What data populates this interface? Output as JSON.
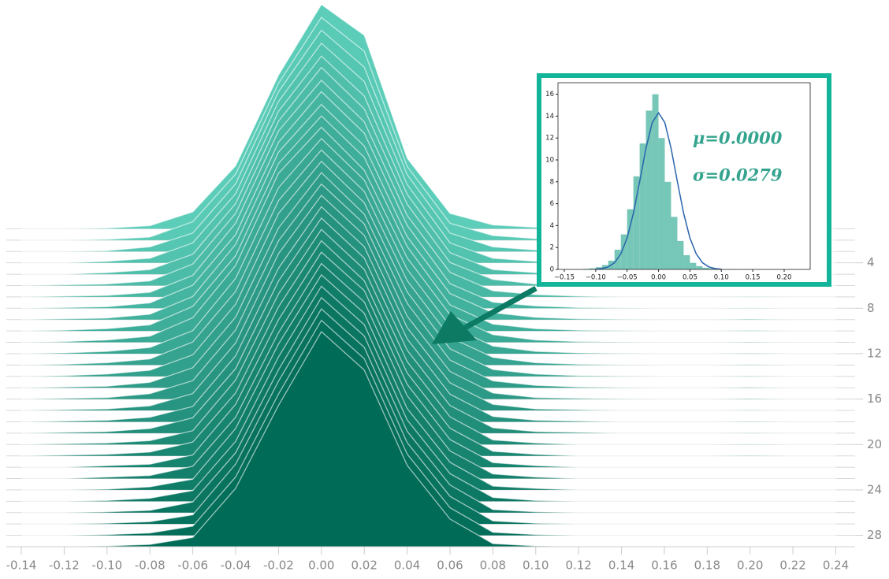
{
  "chart_data": [
    {
      "type": "ridgeline",
      "x": [
        -0.14,
        -0.12,
        -0.1,
        -0.08,
        -0.06,
        -0.04,
        -0.02,
        0.0,
        0.02,
        0.04,
        0.06,
        0.08,
        0.1,
        0.12,
        0.14,
        0.16,
        0.18,
        0.2,
        0.22,
        0.24
      ],
      "series": [
        {
          "values": [
            0,
            0,
            0.05,
            0.2,
            1.1,
            4.1,
            10.0,
            14.6,
            12.6,
            4.6,
            1.0,
            0.25,
            0.1,
            0.05,
            0,
            0,
            0,
            0,
            0,
            0
          ]
        },
        {
          "values": [
            0,
            0,
            0.05,
            0.2,
            1.2,
            4.3,
            10.2,
            14.5,
            12.3,
            4.8,
            1.1,
            0.3,
            0.1,
            0.05,
            0,
            0,
            0,
            0,
            0,
            0
          ]
        },
        {
          "values": [
            0,
            0,
            0.05,
            0.3,
            1.2,
            4.4,
            10.4,
            14.4,
            12.0,
            5.0,
            1.2,
            0.3,
            0.1,
            0.05,
            0,
            0,
            0,
            0,
            0,
            0
          ]
        },
        {
          "values": [
            0,
            0,
            0.1,
            0.3,
            1.3,
            4.5,
            10.5,
            14.3,
            11.8,
            5.1,
            1.3,
            0.3,
            0.1,
            0.05,
            0,
            0,
            0,
            0,
            0,
            0
          ]
        },
        {
          "values": [
            0,
            0,
            0.1,
            0.3,
            1.3,
            4.6,
            10.6,
            14.2,
            11.6,
            5.2,
            1.4,
            0.3,
            0.1,
            0.05,
            0,
            0,
            0,
            0,
            0,
            0
          ]
        },
        {
          "values": [
            0,
            0.05,
            0.1,
            0.3,
            1.4,
            4.7,
            10.7,
            14.2,
            11.5,
            5.3,
            1.5,
            0.4,
            0.1,
            0.05,
            0,
            0,
            0,
            0.02,
            0,
            0
          ]
        },
        {
          "values": [
            0,
            0.05,
            0.1,
            0.3,
            1.4,
            4.8,
            10.8,
            14.1,
            11.4,
            5.3,
            1.6,
            0.4,
            0.15,
            0.05,
            0,
            0,
            0,
            0.02,
            0,
            0
          ]
        },
        {
          "values": [
            0,
            0.05,
            0.1,
            0.35,
            1.5,
            4.8,
            10.8,
            14.1,
            11.4,
            5.4,
            1.6,
            0.4,
            0.15,
            0.05,
            0.02,
            0,
            0,
            0.02,
            0,
            0
          ]
        },
        {
          "values": [
            0,
            0.05,
            0.1,
            0.35,
            1.5,
            4.9,
            10.9,
            14.0,
            11.3,
            5.4,
            1.7,
            0.45,
            0.15,
            0.05,
            0.02,
            0,
            0,
            0.03,
            0,
            0
          ]
        },
        {
          "values": [
            0,
            0.05,
            0.15,
            0.4,
            1.6,
            4.9,
            10.9,
            14.0,
            11.3,
            5.5,
            1.7,
            0.45,
            0.15,
            0.05,
            0.02,
            0,
            0,
            0.03,
            0,
            0
          ]
        },
        {
          "values": [
            0,
            0.05,
            0.15,
            0.4,
            1.6,
            5.0,
            11.0,
            14.0,
            11.2,
            5.5,
            1.8,
            0.5,
            0.15,
            0.05,
            0.02,
            0,
            0,
            0.03,
            0,
            0
          ]
        },
        {
          "values": [
            0,
            0.05,
            0.15,
            0.4,
            1.5,
            4.9,
            10.8,
            14.0,
            11.3,
            5.5,
            1.8,
            0.5,
            0.15,
            0.05,
            0.02,
            0,
            0,
            0.03,
            0,
            0
          ]
        },
        {
          "values": [
            0,
            0.05,
            0.15,
            0.4,
            1.5,
            4.8,
            10.7,
            14.0,
            11.3,
            5.5,
            1.8,
            0.5,
            0.15,
            0.05,
            0.02,
            0,
            0,
            0.03,
            0,
            0
          ]
        },
        {
          "values": [
            0,
            0.05,
            0.15,
            0.4,
            1.4,
            4.7,
            10.6,
            14.0,
            11.3,
            5.5,
            1.8,
            0.45,
            0.15,
            0.05,
            0.02,
            0,
            0,
            0.03,
            0,
            0
          ]
        },
        {
          "values": [
            0,
            0.05,
            0.1,
            0.35,
            1.3,
            4.6,
            10.4,
            14.0,
            11.3,
            5.5,
            1.8,
            0.45,
            0.15,
            0.05,
            0.02,
            0,
            0,
            0.03,
            0,
            0
          ]
        },
        {
          "values": [
            0,
            0.05,
            0.1,
            0.35,
            1.2,
            4.5,
            10.3,
            14.0,
            11.4,
            5.4,
            1.8,
            0.4,
            0.1,
            0.05,
            0.02,
            0,
            0,
            0.03,
            0,
            0
          ]
        },
        {
          "values": [
            0,
            0.05,
            0.1,
            0.3,
            1.1,
            4.4,
            10.2,
            14.0,
            11.4,
            5.4,
            1.8,
            0.4,
            0.1,
            0.05,
            0,
            0,
            0,
            0.02,
            0,
            0
          ]
        },
        {
          "values": [
            0,
            0.05,
            0.1,
            0.3,
            1.0,
            4.3,
            10.0,
            14.0,
            11.4,
            5.4,
            1.8,
            0.35,
            0.1,
            0.05,
            0,
            0,
            0,
            0.02,
            0,
            0
          ]
        },
        {
          "values": [
            0,
            0.05,
            0.1,
            0.3,
            1.0,
            4.2,
            9.9,
            14.0,
            11.4,
            5.4,
            1.8,
            0.35,
            0.1,
            0.05,
            0,
            0,
            0,
            0.02,
            0,
            0
          ]
        },
        {
          "values": [
            0,
            0.05,
            0.1,
            0.25,
            0.9,
            4.2,
            9.8,
            14.0,
            11.4,
            5.4,
            1.8,
            0.3,
            0.1,
            0,
            0,
            0,
            0,
            0.02,
            0,
            0
          ]
        },
        {
          "values": [
            0,
            0.05,
            0.1,
            0.25,
            0.9,
            4.1,
            9.7,
            14.0,
            11.4,
            5.4,
            1.8,
            0.3,
            0.1,
            0,
            0,
            0,
            0,
            0.02,
            0,
            0
          ]
        },
        {
          "values": [
            0,
            0,
            0.1,
            0.2,
            0.8,
            4.1,
            9.6,
            14.0,
            11.5,
            5.4,
            1.8,
            0.3,
            0.1,
            0,
            0,
            0,
            0,
            0,
            0,
            0
          ]
        },
        {
          "values": [
            0,
            0,
            0.1,
            0.2,
            0.8,
            4.0,
            9.5,
            14.0,
            11.5,
            5.4,
            1.8,
            0.3,
            0.1,
            0,
            0,
            0,
            0,
            0,
            0,
            0
          ]
        },
        {
          "values": [
            0,
            0,
            0.05,
            0.2,
            0.7,
            4.0,
            9.5,
            14.0,
            11.5,
            5.3,
            1.8,
            0.25,
            0.1,
            0,
            0,
            0,
            0,
            0,
            0,
            0
          ]
        },
        {
          "values": [
            0,
            0,
            0.05,
            0.2,
            0.7,
            3.9,
            9.4,
            14.0,
            11.5,
            5.3,
            1.8,
            0.25,
            0.05,
            0,
            0,
            0,
            0,
            0,
            0,
            0
          ]
        },
        {
          "values": [
            0,
            0,
            0.05,
            0.15,
            0.7,
            3.9,
            9.3,
            14.0,
            11.5,
            5.3,
            1.8,
            0.2,
            0.05,
            0,
            0,
            0,
            0,
            0,
            0,
            0
          ]
        },
        {
          "values": [
            0,
            0,
            0.05,
            0.15,
            0.6,
            3.9,
            9.3,
            14.0,
            11.5,
            5.3,
            1.8,
            0.2,
            0.05,
            0,
            0,
            0,
            0,
            0,
            0,
            0
          ]
        },
        {
          "values": [
            0,
            0,
            0.05,
            0.15,
            0.6,
            3.8,
            9.2,
            14.0,
            11.5,
            5.3,
            1.8,
            0.2,
            0.05,
            0,
            0,
            0,
            0,
            0,
            0,
            0
          ]
        },
        {
          "values": [
            0,
            0,
            0.05,
            0.15,
            0.6,
            3.8,
            9.2,
            14.0,
            11.5,
            5.3,
            1.8,
            0.2,
            0.05,
            0,
            0,
            0,
            0,
            0,
            0,
            0
          ]
        }
      ],
      "colors": [
        "#5ccdb9",
        "#006b57"
      ],
      "xlim": [
        -0.147,
        0.249
      ],
      "xticks": [
        -0.14,
        -0.12,
        {
          "value": -0.1,
          "label": "-0.10"
        },
        -0.08,
        -0.06,
        -0.04,
        -0.02,
        {
          "value": 0,
          "label": "0.00"
        },
        0.02,
        0.04,
        0.06,
        0.08,
        {
          "value": 0.1,
          "label": "0.10"
        },
        0.12,
        0.14,
        0.16,
        0.18,
        {
          "value": 0.2,
          "label": "0.20"
        },
        0.22,
        0.24
      ],
      "ylim": [
        29,
        0
      ],
      "yticks": [
        4,
        8,
        12,
        16,
        20,
        24,
        28
      ]
    },
    {
      "type": "histogram",
      "bins": [
        -0.12,
        -0.11,
        -0.1,
        -0.09,
        -0.08,
        -0.07,
        -0.06,
        -0.05,
        -0.04,
        -0.03,
        -0.02,
        -0.01,
        0,
        0.01,
        0.02,
        0.03,
        0.04,
        0.05,
        0.06,
        0.07,
        0.08,
        0.09,
        0.1,
        0.11,
        0.12
      ],
      "values": [
        0.05,
        0.1,
        0.2,
        0.4,
        0.8,
        1.8,
        3.2,
        5.5,
        8.5,
        11.5,
        14.5,
        16.0,
        12.0,
        8.0,
        4.8,
        2.6,
        1.3,
        0.6,
        0.3,
        0.15,
        0.1,
        0.05,
        0.02,
        0.02
      ],
      "color": "#76c7b7",
      "fit": {
        "x": [
          -0.1,
          -0.09,
          -0.08,
          -0.07,
          -0.06,
          -0.05,
          -0.04,
          -0.03,
          -0.02,
          -0.01,
          0,
          0.01,
          0.02,
          0.03,
          0.04,
          0.05,
          0.06,
          0.07,
          0.08,
          0.09,
          0.1
        ],
        "values": [
          0.02,
          0.08,
          0.23,
          0.61,
          1.42,
          2.87,
          5.12,
          8.02,
          11.06,
          13.41,
          14.3,
          13.41,
          11.06,
          8.02,
          5.12,
          2.87,
          1.42,
          0.61,
          0.23,
          0.08,
          0.02
        ],
        "color": "#2a64ad"
      },
      "annotations": [
        "μ=0.0000",
        "σ=0.0279"
      ],
      "xlim": [
        -0.16,
        0.2414
      ],
      "xticks": [
        {
          "value": -0.15,
          "label": "−0.15"
        },
        {
          "value": -0.1,
          "label": "−0.10"
        },
        {
          "value": -0.05,
          "label": "−0.05"
        },
        {
          "value": 0,
          "label": "0.00"
        },
        0.05,
        {
          "value": 0.1,
          "label": "0.10"
        },
        0.15,
        {
          "value": 0.2,
          "label": "0.20"
        }
      ],
      "ylim": [
        0,
        17.05
      ],
      "yticks": [
        0,
        2,
        4,
        6,
        8,
        10,
        12,
        14,
        16
      ]
    }
  ]
}
